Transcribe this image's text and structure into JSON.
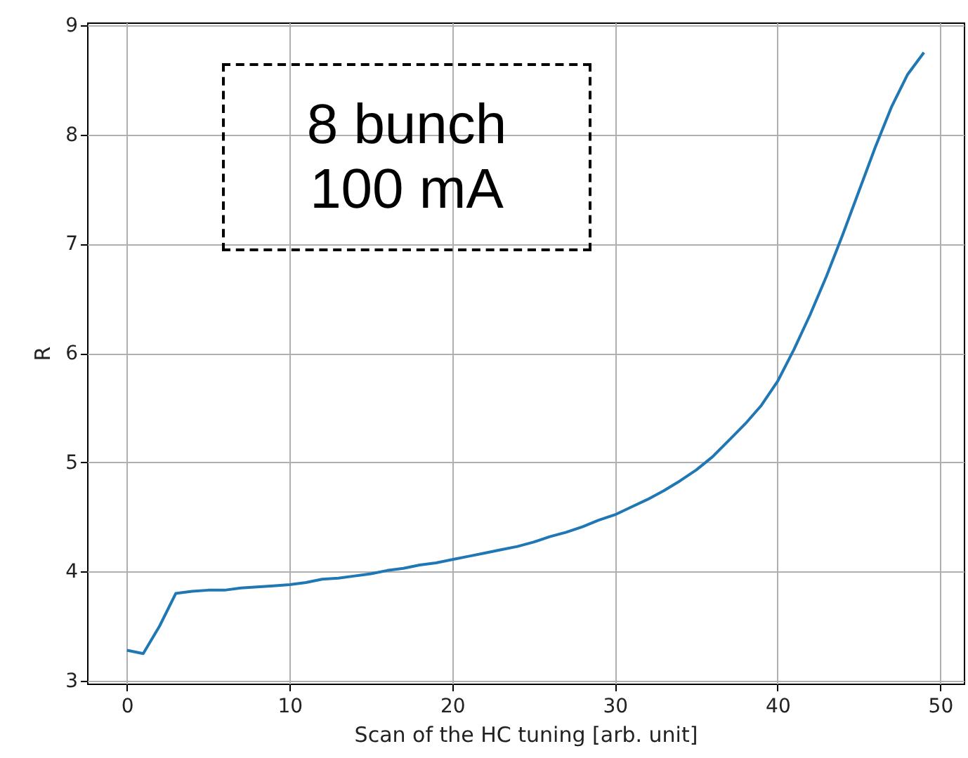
{
  "chart_data": {
    "type": "line",
    "xlabel": "Scan of the HC tuning [arb. unit]",
    "ylabel": "R",
    "x": [
      0,
      1,
      2,
      3,
      4,
      5,
      6,
      7,
      8,
      9,
      10,
      11,
      12,
      13,
      14,
      15,
      16,
      17,
      18,
      19,
      20,
      21,
      22,
      23,
      24,
      25,
      26,
      27,
      28,
      29,
      30,
      31,
      32,
      33,
      34,
      35,
      36,
      37,
      38,
      39,
      40,
      41,
      42,
      43,
      44,
      45,
      46,
      47,
      48,
      49
    ],
    "series": [
      {
        "color": "#1f77b4",
        "values": [
          3.28,
          3.25,
          3.5,
          3.8,
          3.82,
          3.83,
          3.83,
          3.85,
          3.86,
          3.87,
          3.88,
          3.9,
          3.93,
          3.94,
          3.96,
          3.98,
          4.01,
          4.03,
          4.06,
          4.08,
          4.11,
          4.14,
          4.17,
          4.2,
          4.23,
          4.27,
          4.32,
          4.36,
          4.41,
          4.47,
          4.52,
          4.59,
          4.66,
          4.74,
          4.83,
          4.93,
          5.05,
          5.2,
          5.35,
          5.52,
          5.74,
          6.03,
          6.35,
          6.7,
          7.08,
          7.48,
          7.88,
          8.25,
          8.55,
          8.75
        ]
      }
    ],
    "xlim": [
      -2.45,
      51.45
    ],
    "xticks": [
      0,
      10,
      20,
      30,
      40,
      50
    ],
    "ylim": [
      2.975,
      9.025
    ],
    "yticks": [
      3,
      4,
      5,
      6,
      7,
      8,
      9
    ],
    "grid": true,
    "marker": "none",
    "line_style": "solid",
    "annotations": [
      "8 bunch\n100 mA"
    ]
  }
}
